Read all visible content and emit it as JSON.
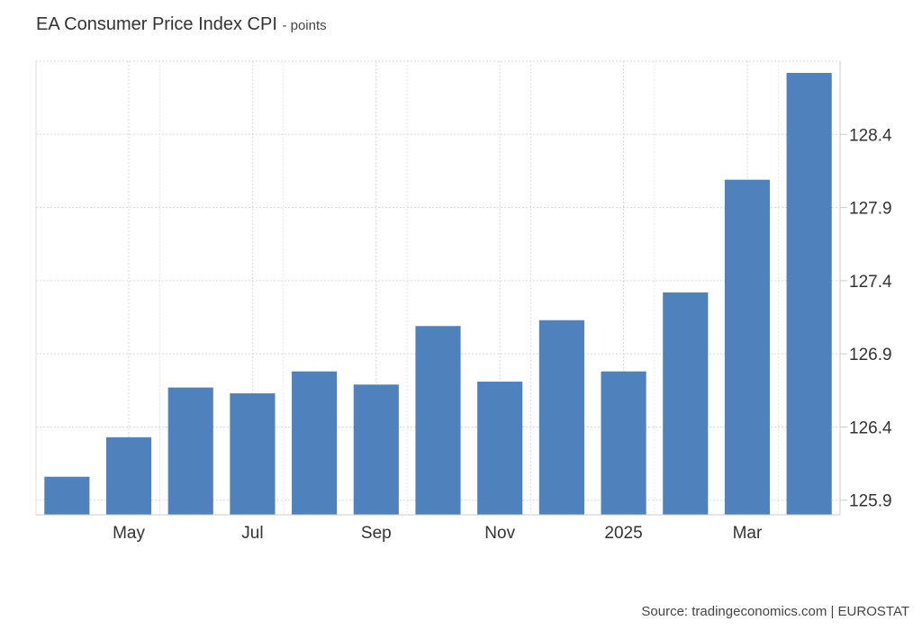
{
  "title": "EA Consumer Price Index CPI",
  "title_unit": "- points",
  "source": "Source: tradingeconomics.com | EUROSTAT",
  "chart_data": {
    "type": "bar",
    "title": "EA Consumer Price Index CPI",
    "ylabel": "points",
    "categories": [
      "2024-04",
      "2024-05",
      "2024-06",
      "2024-07",
      "2024-08",
      "2024-09",
      "2024-10",
      "2024-11",
      "2024-12",
      "2025-01",
      "2025-02",
      "2025-03",
      "2025-04"
    ],
    "values": [
      126.06,
      126.33,
      126.67,
      126.63,
      126.78,
      126.69,
      127.09,
      126.71,
      127.13,
      126.78,
      127.32,
      128.09,
      128.82
    ],
    "x_tick_labels": [
      {
        "index": 1,
        "label": "May"
      },
      {
        "index": 3,
        "label": "Jul"
      },
      {
        "index": 5,
        "label": "Sep"
      },
      {
        "index": 7,
        "label": "Nov"
      },
      {
        "index": 9,
        "label": "2025"
      },
      {
        "index": 11,
        "label": "Mar"
      }
    ],
    "y_ticks": [
      125.9,
      126.4,
      126.9,
      127.4,
      127.9,
      128.4
    ],
    "ylim": [
      125.8,
      128.9
    ],
    "y_axis_side": "right",
    "grid": true,
    "bar_color": "#4f81bd"
  }
}
